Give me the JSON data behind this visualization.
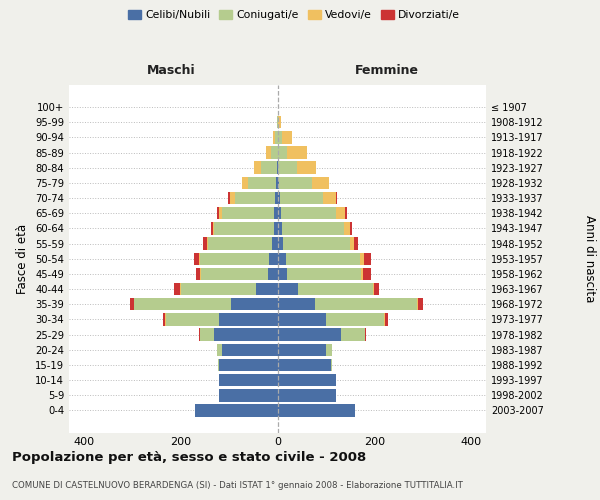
{
  "age_groups": [
    "0-4",
    "5-9",
    "10-14",
    "15-19",
    "20-24",
    "25-29",
    "30-34",
    "35-39",
    "40-44",
    "45-49",
    "50-54",
    "55-59",
    "60-64",
    "65-69",
    "70-74",
    "75-79",
    "80-84",
    "85-89",
    "90-94",
    "95-99",
    "100+"
  ],
  "birth_years": [
    "2003-2007",
    "1998-2002",
    "1993-1997",
    "1988-1992",
    "1983-1987",
    "1978-1982",
    "1973-1977",
    "1968-1972",
    "1963-1967",
    "1958-1962",
    "1953-1957",
    "1948-1952",
    "1943-1947",
    "1938-1942",
    "1933-1937",
    "1928-1932",
    "1923-1927",
    "1918-1922",
    "1913-1917",
    "1908-1912",
    "≤ 1907"
  ],
  "colors": {
    "celibi": "#4a6fa5",
    "coniugati": "#b5cc8e",
    "vedovi": "#f0c060",
    "divorziati": "#cc3333"
  },
  "males": {
    "celibi": [
      170,
      120,
      120,
      120,
      115,
      130,
      120,
      95,
      45,
      20,
      18,
      12,
      8,
      7,
      5,
      3,
      2,
      0,
      0,
      0,
      0
    ],
    "coniugati": [
      0,
      0,
      0,
      2,
      10,
      30,
      110,
      200,
      155,
      138,
      142,
      132,
      122,
      108,
      82,
      58,
      32,
      14,
      5,
      1,
      0
    ],
    "vedovi": [
      0,
      0,
      0,
      0,
      0,
      0,
      1,
      1,
      1,
      1,
      2,
      2,
      2,
      5,
      10,
      12,
      14,
      10,
      5,
      1,
      0
    ],
    "divorziati": [
      0,
      0,
      0,
      0,
      0,
      2,
      5,
      8,
      12,
      10,
      10,
      8,
      5,
      5,
      5,
      0,
      0,
      0,
      0,
      0,
      0
    ]
  },
  "females": {
    "celibi": [
      160,
      120,
      120,
      110,
      100,
      130,
      100,
      78,
      42,
      20,
      18,
      12,
      9,
      7,
      5,
      3,
      2,
      2,
      1,
      0,
      0
    ],
    "coniugati": [
      0,
      0,
      0,
      2,
      12,
      50,
      120,
      210,
      155,
      152,
      152,
      138,
      128,
      113,
      88,
      68,
      38,
      18,
      8,
      2,
      0
    ],
    "vedovi": [
      0,
      0,
      0,
      0,
      0,
      1,
      2,
      2,
      3,
      5,
      8,
      8,
      12,
      20,
      28,
      35,
      40,
      40,
      20,
      5,
      2
    ],
    "divorziati": [
      0,
      0,
      0,
      0,
      1,
      2,
      5,
      10,
      10,
      15,
      15,
      8,
      5,
      3,
      2,
      0,
      0,
      0,
      0,
      0,
      0
    ]
  },
  "xlim": 430,
  "xticks": [
    -400,
    -200,
    0,
    200,
    400
  ],
  "xtick_labels": [
    "400",
    "200",
    "0",
    "200",
    "400"
  ],
  "title": "Popolazione per età, sesso e stato civile - 2008",
  "subtitle": "COMUNE DI CASTELNUOVO BERARDENGA (SI) - Dati ISTAT 1° gennaio 2008 - Elaborazione TUTTITALIA.IT",
  "ylabel_left": "Fasce di età",
  "ylabel_right": "Anni di nascita",
  "header_left": "Maschi",
  "header_right": "Femmine",
  "bg_color": "#f0f0eb",
  "plot_bg_color": "#ffffff"
}
